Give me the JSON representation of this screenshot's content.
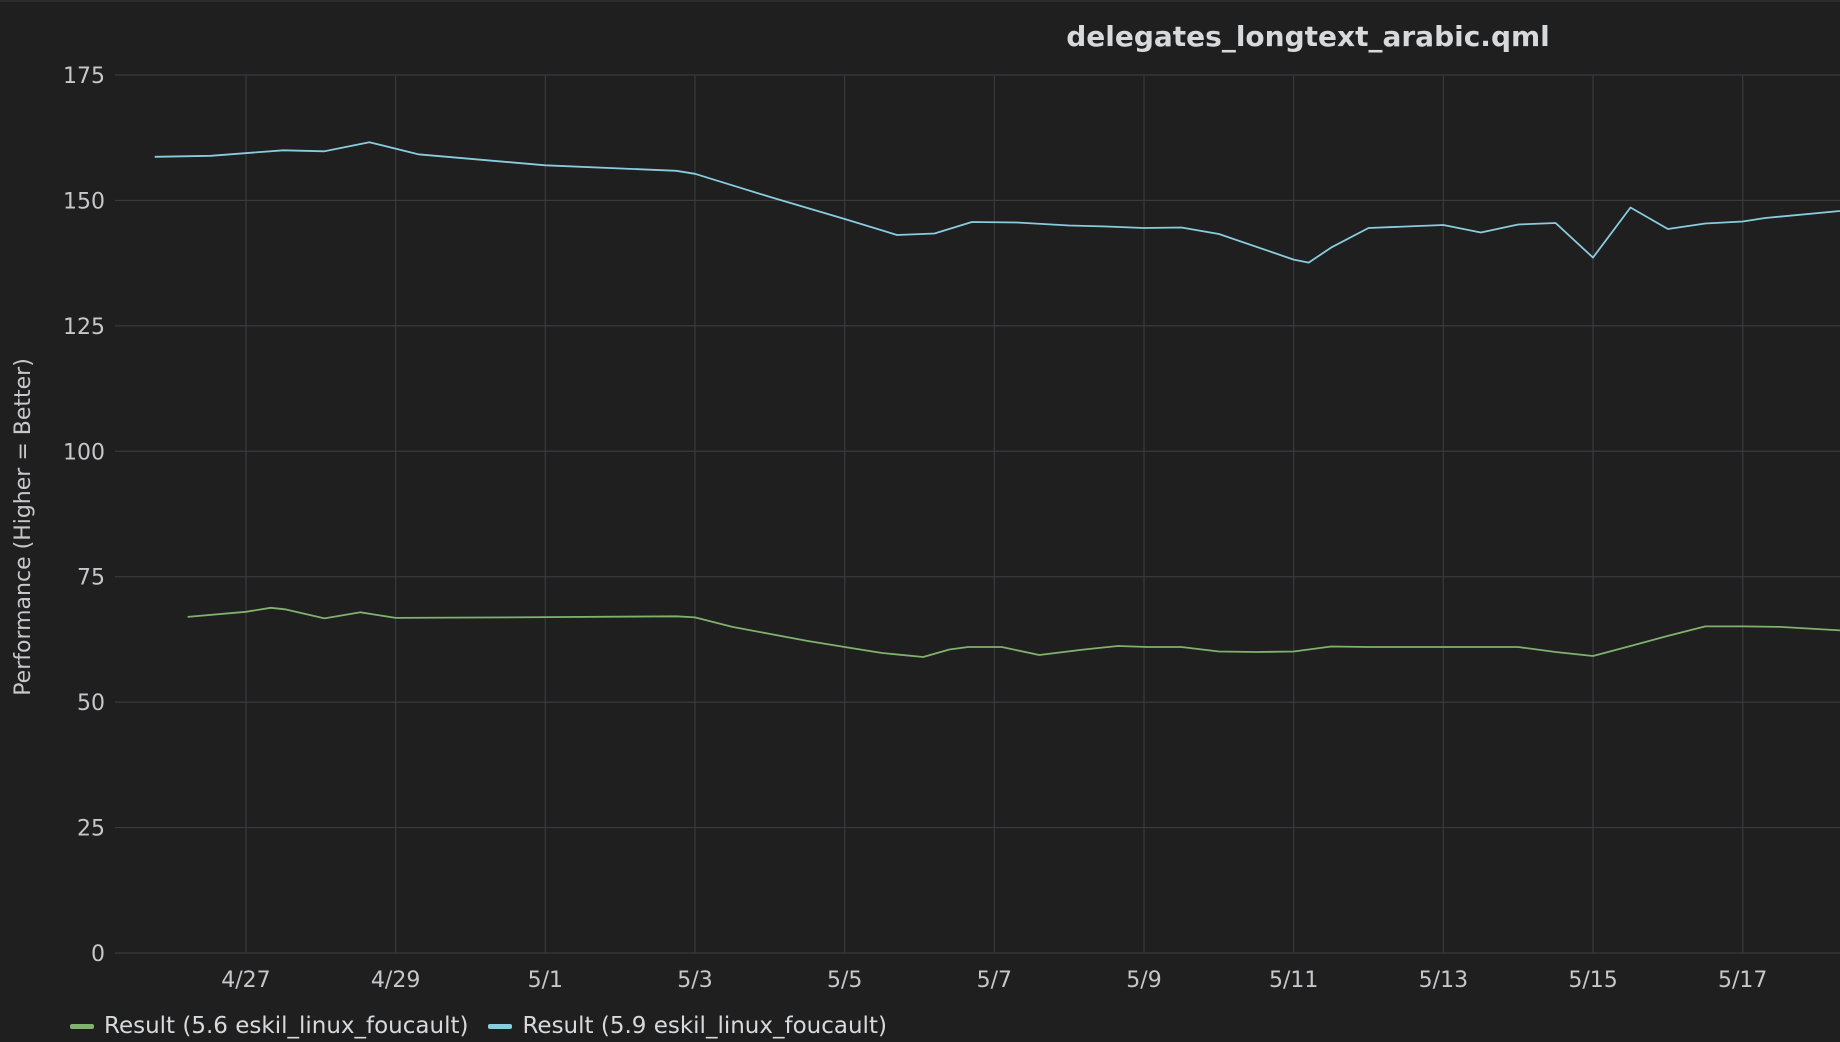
{
  "chart_data": {
    "type": "line",
    "title": "delegates_longtext_arabic.qml",
    "xlabel": "",
    "ylabel": "Performance (Higher = Better)",
    "ylim": [
      0,
      175
    ],
    "yticks": [
      0,
      25,
      50,
      75,
      100,
      125,
      150,
      175
    ],
    "xlim": [
      -1.75,
      21.3
    ],
    "xtick_labels": [
      "4/27",
      "4/29",
      "5/1",
      "5/3",
      "5/5",
      "5/7",
      "5/9",
      "5/11",
      "5/13",
      "5/15",
      "5/17"
    ],
    "xtick_values": [
      0,
      2,
      4,
      6,
      8,
      10,
      12,
      14,
      16,
      18,
      20
    ],
    "grid": true,
    "legend_position": "bottom-left",
    "series": [
      {
        "name": "Result (5.6 eskil_linux_foucault)",
        "color": "#7eb26d",
        "x": [
          -0.78,
          0.0,
          0.33,
          0.52,
          1.05,
          1.53,
          2.0,
          3.5,
          5.75,
          6.0,
          6.5,
          7.0,
          7.5,
          8.0,
          8.5,
          9.05,
          9.4,
          9.65,
          10.1,
          10.6,
          11.2,
          11.65,
          12.05,
          12.5,
          13.0,
          13.5,
          14.0,
          14.5,
          15.0,
          15.5,
          16.0,
          16.5,
          17.0,
          17.5,
          18.0,
          18.5,
          19.0,
          19.5,
          20.0,
          20.5,
          21.3
        ],
        "y": [
          67.0,
          68.0,
          68.8,
          68.5,
          66.7,
          67.9,
          66.8,
          66.9,
          67.1,
          66.9,
          65.0,
          63.6,
          62.2,
          61.0,
          59.8,
          59.0,
          60.5,
          61.0,
          61.0,
          59.4,
          60.5,
          61.2,
          61.0,
          61.0,
          60.1,
          60.0,
          60.1,
          61.1,
          61.0,
          61.0,
          61.0,
          61.0,
          61.0,
          60.0,
          59.2,
          61.2,
          63.2,
          65.1,
          65.1,
          65.0,
          64.3
        ]
      },
      {
        "name": "Result (5.9 eskil_linux_foucault)",
        "color": "#89ccde",
        "x": [
          -1.22,
          -0.47,
          0.5,
          1.05,
          1.65,
          2.3,
          4.0,
          5.75,
          6.0,
          7.0,
          8.0,
          8.7,
          9.2,
          9.7,
          10.3,
          11.0,
          11.5,
          12.0,
          12.5,
          13.0,
          14.0,
          14.2,
          14.5,
          15.0,
          16.0,
          16.5,
          17.0,
          17.5,
          18.0,
          18.5,
          19.0,
          19.5,
          20.0,
          20.3,
          21.3
        ],
        "y": [
          158.7,
          158.9,
          160.0,
          159.8,
          161.6,
          159.2,
          157.0,
          155.9,
          155.3,
          150.7,
          146.3,
          143.1,
          143.4,
          145.7,
          145.6,
          145.0,
          144.8,
          144.5,
          144.6,
          143.3,
          138.2,
          137.6,
          140.6,
          144.5,
          145.1,
          143.6,
          145.2,
          145.5,
          138.6,
          148.6,
          144.3,
          145.4,
          145.8,
          146.5,
          147.9
        ]
      }
    ]
  }
}
